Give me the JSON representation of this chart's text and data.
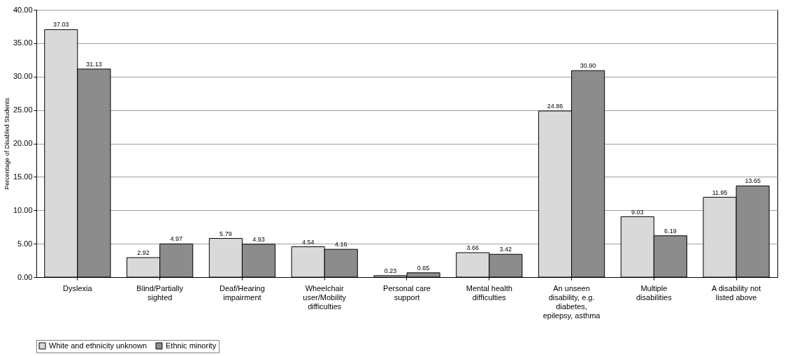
{
  "chart_data": {
    "type": "bar",
    "ylabel": "Percentage of Disabled Students",
    "categories": [
      "Dyslexia",
      "Blind/Partially sighted",
      "Deaf/Hearing impairment",
      "Wheelchair user/Mobility difficulties",
      "Personal care support",
      "Mental health difficulties",
      "An unseen disability, e.g. diabetes, epilepsy, asthma",
      "Multiple disabilities",
      "A disability not listed above"
    ],
    "series": [
      {
        "name": "White and ethnicity unknown",
        "color": "#d9d9d9",
        "values": [
          37.03,
          2.92,
          5.79,
          4.54,
          0.23,
          3.66,
          24.86,
          9.03,
          11.95
        ],
        "value_labels": [
          "37.03",
          "2.92",
          "5.79",
          "4.54",
          "0.23",
          "3.66",
          "24.86",
          "9.03",
          "11.95"
        ]
      },
      {
        "name": "Ethnic minority",
        "color": "#8c8c8c",
        "values": [
          31.13,
          4.97,
          4.93,
          4.16,
          0.65,
          3.42,
          30.9,
          6.19,
          13.65
        ],
        "value_labels": [
          "31.13",
          "4.97",
          "4.93",
          "4.16",
          "0.65",
          "3.42",
          "30.90",
          "6.19",
          "13.65"
        ]
      }
    ],
    "ylim": [
      0,
      40
    ],
    "yticks": [
      {
        "value": 0,
        "label": "0.00"
      },
      {
        "value": 5,
        "label": "5.00"
      },
      {
        "value": 10,
        "label": "10.00"
      },
      {
        "value": 15,
        "label": "15.00"
      },
      {
        "value": 20,
        "label": "20.00"
      },
      {
        "value": 25,
        "label": "25.00"
      },
      {
        "value": 30,
        "label": "30.00"
      },
      {
        "value": 35,
        "label": "35.00"
      },
      {
        "value": 40,
        "label": "40.00"
      }
    ],
    "grid": "y",
    "legend": "bottom"
  }
}
